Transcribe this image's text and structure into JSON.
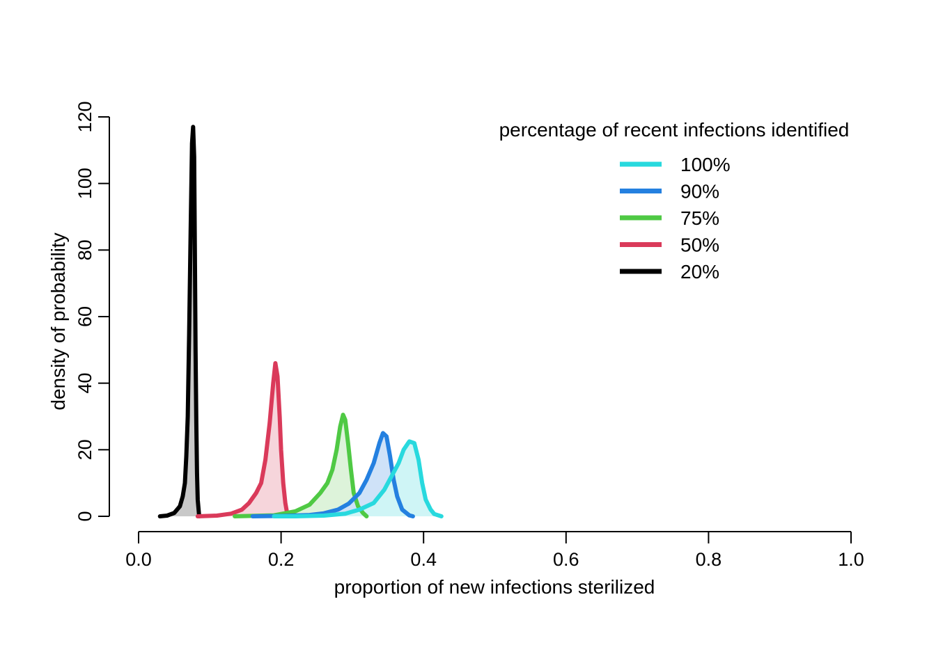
{
  "chart_data": {
    "type": "area",
    "xlabel": "proportion of new infections sterilized",
    "ylabel": "density of probability",
    "xlim": [
      0,
      1
    ],
    "ylim": [
      0,
      120
    ],
    "x_ticks": [
      "0.0",
      "0.2",
      "0.4",
      "0.6",
      "0.8",
      "1.0"
    ],
    "y_ticks": [
      "0",
      "20",
      "40",
      "60",
      "80",
      "100",
      "120"
    ],
    "grid": false,
    "legend": {
      "title": "percentage of recent infections identified",
      "position": "top-right"
    },
    "series": [
      {
        "name": "100%",
        "color": "#28D9DE",
        "fill": "#CFF5F6",
        "points": [
          [
            0.19,
            0
          ],
          [
            0.22,
            0
          ],
          [
            0.26,
            0.2
          ],
          [
            0.29,
            0.8
          ],
          [
            0.31,
            2
          ],
          [
            0.33,
            4
          ],
          [
            0.345,
            8
          ],
          [
            0.355,
            12
          ],
          [
            0.365,
            16
          ],
          [
            0.372,
            20
          ],
          [
            0.38,
            22.5
          ],
          [
            0.387,
            22
          ],
          [
            0.393,
            17
          ],
          [
            0.398,
            10
          ],
          [
            0.403,
            5
          ],
          [
            0.41,
            2
          ],
          [
            0.415,
            0.7
          ],
          [
            0.425,
            0
          ]
        ]
      },
      {
        "name": "90%",
        "color": "#2480E0",
        "fill": "#CFE2F8",
        "points": [
          [
            0.16,
            0
          ],
          [
            0.2,
            0.1
          ],
          [
            0.24,
            0.4
          ],
          [
            0.26,
            0.9
          ],
          [
            0.28,
            2
          ],
          [
            0.295,
            3.8
          ],
          [
            0.31,
            7
          ],
          [
            0.32,
            11
          ],
          [
            0.33,
            16
          ],
          [
            0.338,
            22
          ],
          [
            0.343,
            25
          ],
          [
            0.348,
            24
          ],
          [
            0.353,
            18
          ],
          [
            0.358,
            11
          ],
          [
            0.363,
            6
          ],
          [
            0.37,
            2
          ],
          [
            0.38,
            0.3
          ],
          [
            0.385,
            0
          ]
        ]
      },
      {
        "name": "75%",
        "color": "#4FC944",
        "fill": "#DDF3DA",
        "points": [
          [
            0.135,
            0
          ],
          [
            0.19,
            0.3
          ],
          [
            0.22,
            1.5
          ],
          [
            0.24,
            3.5
          ],
          [
            0.255,
            7
          ],
          [
            0.265,
            10
          ],
          [
            0.272,
            14
          ],
          [
            0.278,
            20
          ],
          [
            0.283,
            27
          ],
          [
            0.287,
            30.5
          ],
          [
            0.29,
            29
          ],
          [
            0.294,
            22
          ],
          [
            0.298,
            14
          ],
          [
            0.302,
            7
          ],
          [
            0.308,
            3
          ],
          [
            0.315,
            1
          ],
          [
            0.32,
            0
          ]
        ]
      },
      {
        "name": "50%",
        "color": "#DA3A5A",
        "fill": "#F6D5DB",
        "points": [
          [
            0.083,
            0
          ],
          [
            0.11,
            0.2
          ],
          [
            0.13,
            0.8
          ],
          [
            0.145,
            2
          ],
          [
            0.155,
            4
          ],
          [
            0.165,
            7
          ],
          [
            0.172,
            10
          ],
          [
            0.178,
            17
          ],
          [
            0.184,
            28
          ],
          [
            0.189,
            40
          ],
          [
            0.192,
            46
          ],
          [
            0.195,
            42
          ],
          [
            0.198,
            30
          ],
          [
            0.2,
            20
          ],
          [
            0.203,
            10
          ],
          [
            0.206,
            4
          ],
          [
            0.208,
            1.5
          ],
          [
            0.21,
            0
          ]
        ]
      },
      {
        "name": "20%",
        "color": "#000000",
        "fill": "#C8C8C8",
        "points": [
          [
            0.03,
            0
          ],
          [
            0.04,
            0.2
          ],
          [
            0.05,
            1
          ],
          [
            0.058,
            3
          ],
          [
            0.062,
            6
          ],
          [
            0.065,
            10
          ],
          [
            0.067,
            18
          ],
          [
            0.069,
            30
          ],
          [
            0.071,
            55
          ],
          [
            0.073,
            85
          ],
          [
            0.075,
            112
          ],
          [
            0.0765,
            117
          ],
          [
            0.078,
            108
          ],
          [
            0.079,
            80
          ],
          [
            0.08,
            50
          ],
          [
            0.081,
            28
          ],
          [
            0.082,
            13
          ],
          [
            0.083,
            5
          ],
          [
            0.085,
            0
          ]
        ]
      }
    ]
  }
}
